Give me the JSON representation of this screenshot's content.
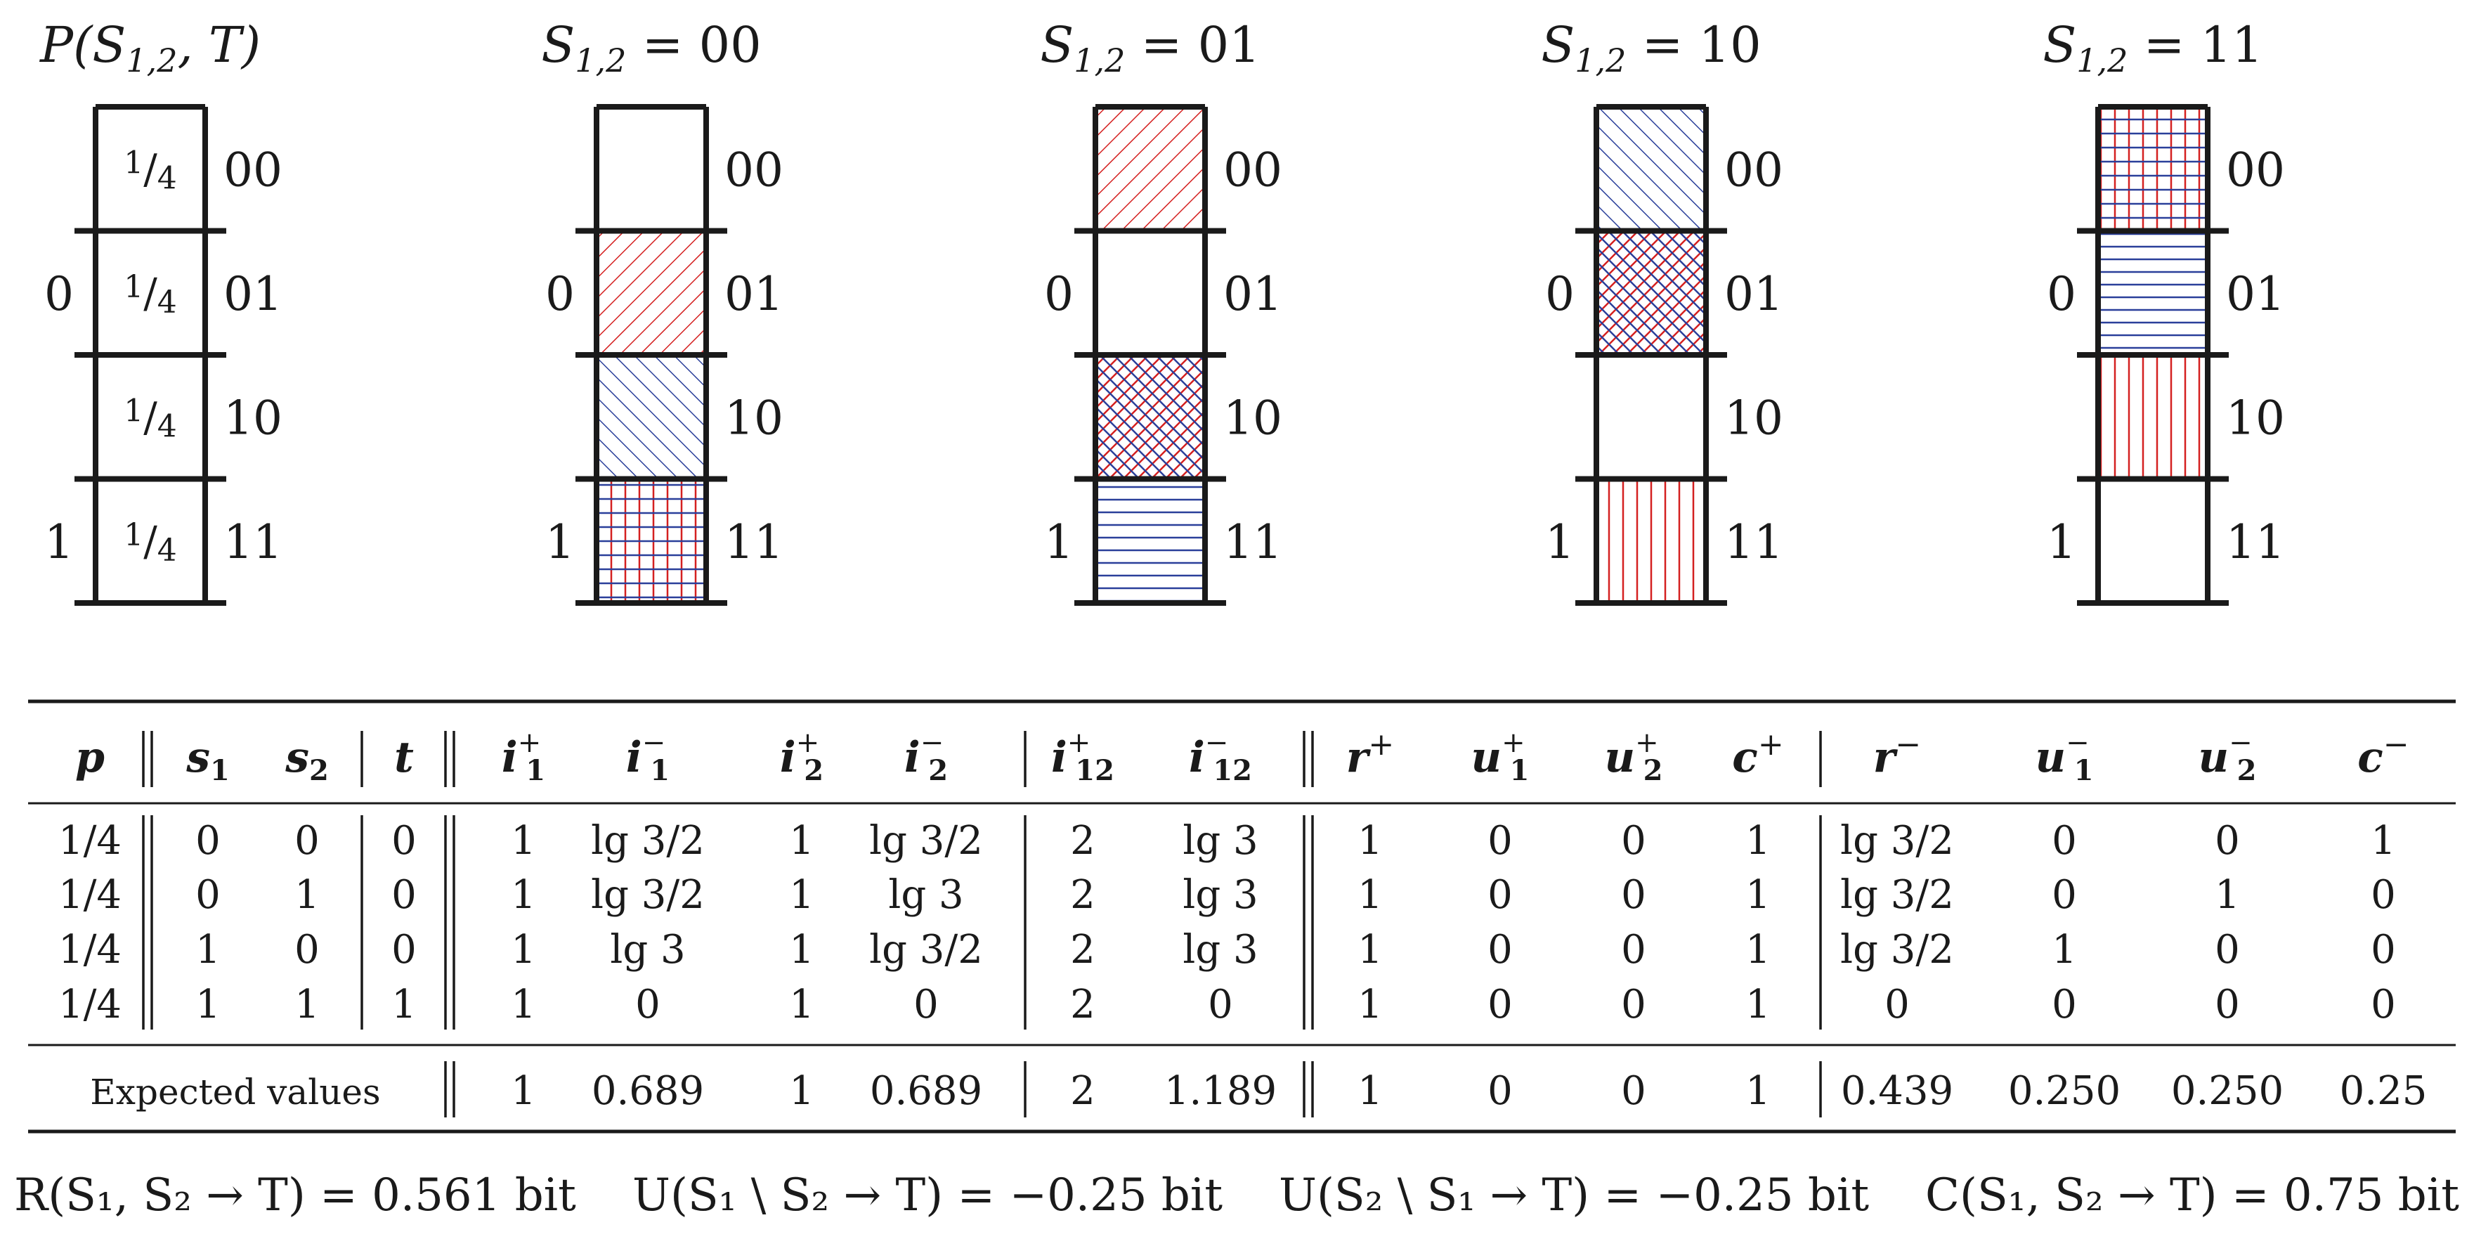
{
  "panels": [
    {
      "title_main": "P(S",
      "title_sub": "1,2",
      "title_rest": ", T)",
      "cells": [
        {
          "label": "1/4",
          "pattern": "none"
        },
        {
          "label": "1/4",
          "pattern": "none"
        },
        {
          "label": "1/4",
          "pattern": "none"
        },
        {
          "label": "1/4",
          "pattern": "none"
        }
      ]
    },
    {
      "title_main": "S",
      "title_sub": "1,2",
      "title_rest": " = 00",
      "cells": [
        {
          "label": "",
          "pattern": "none"
        },
        {
          "label": "",
          "pattern": "red-diag-up"
        },
        {
          "label": "",
          "pattern": "blue-diag-down"
        },
        {
          "label": "",
          "pattern": "grid"
        }
      ]
    },
    {
      "title_main": "S",
      "title_sub": "1,2",
      "title_rest": " = 01",
      "cells": [
        {
          "label": "",
          "pattern": "red-diag-up"
        },
        {
          "label": "",
          "pattern": "none"
        },
        {
          "label": "",
          "pattern": "crosshatch"
        },
        {
          "label": "",
          "pattern": "blue-horizontal"
        }
      ]
    },
    {
      "title_main": "S",
      "title_sub": "1,2",
      "title_rest": " = 10",
      "cells": [
        {
          "label": "",
          "pattern": "blue-diag-down"
        },
        {
          "label": "",
          "pattern": "crosshatch"
        },
        {
          "label": "",
          "pattern": "none"
        },
        {
          "label": "",
          "pattern": "red-vertical"
        }
      ]
    },
    {
      "title_main": "S",
      "title_sub": "1,2",
      "title_rest": " = 11",
      "cells": [
        {
          "label": "",
          "pattern": "grid"
        },
        {
          "label": "",
          "pattern": "blue-horizontal"
        },
        {
          "label": "",
          "pattern": "red-vertical"
        },
        {
          "label": "",
          "pattern": "none"
        }
      ]
    }
  ],
  "row_labels_right": [
    "00",
    "01",
    "10",
    "11"
  ],
  "t_labels": [
    "0",
    "1"
  ],
  "colors": {
    "red": "#d42020",
    "blue": "#2a3f9a",
    "ink": "#1a1a1a"
  },
  "table": {
    "headers": [
      {
        "base": "p",
        "sup": "",
        "sub": ""
      },
      {
        "base": "s",
        "sup": "",
        "sub": "1"
      },
      {
        "base": "s",
        "sup": "",
        "sub": "2"
      },
      {
        "base": "t",
        "sup": "",
        "sub": ""
      },
      {
        "base": "i",
        "sup": "+",
        "sub": "1"
      },
      {
        "base": "i",
        "sup": "−",
        "sub": "1"
      },
      {
        "base": "i",
        "sup": "+",
        "sub": "2"
      },
      {
        "base": "i",
        "sup": "−",
        "sub": "2"
      },
      {
        "base": "i",
        "sup": "+",
        "sub": "12"
      },
      {
        "base": "i",
        "sup": "−",
        "sub": "12"
      },
      {
        "base": "r",
        "sup": "+",
        "sub": ""
      },
      {
        "base": "u",
        "sup": "+",
        "sub": "1"
      },
      {
        "base": "u",
        "sup": "+",
        "sub": "2"
      },
      {
        "base": "c",
        "sup": "+",
        "sub": ""
      },
      {
        "base": "r",
        "sup": "−",
        "sub": ""
      },
      {
        "base": "u",
        "sup": "−",
        "sub": "1"
      },
      {
        "base": "u",
        "sup": "−",
        "sub": "2"
      },
      {
        "base": "c",
        "sup": "−",
        "sub": ""
      }
    ],
    "rows": [
      [
        "1/4",
        "0",
        "0",
        "0",
        "1",
        "lg 3/2",
        "1",
        "lg 3/2",
        "2",
        "lg 3",
        "1",
        "0",
        "0",
        "1",
        "lg 3/2",
        "0",
        "0",
        "1"
      ],
      [
        "1/4",
        "0",
        "1",
        "0",
        "1",
        "lg 3/2",
        "1",
        "lg 3",
        "2",
        "lg 3",
        "1",
        "0",
        "0",
        "1",
        "lg 3/2",
        "0",
        "1",
        "0"
      ],
      [
        "1/4",
        "1",
        "0",
        "0",
        "1",
        "lg 3",
        "1",
        "lg 3/2",
        "2",
        "lg 3",
        "1",
        "0",
        "0",
        "1",
        "lg 3/2",
        "1",
        "0",
        "0"
      ],
      [
        "1/4",
        "1",
        "1",
        "1",
        "1",
        "0",
        "1",
        "0",
        "2",
        "0",
        "1",
        "0",
        "0",
        "1",
        "0",
        "0",
        "0",
        "0"
      ]
    ],
    "expected_label": "Expected values",
    "expected": [
      "1",
      "0.689",
      "1",
      "0.689",
      "2",
      "1.189",
      "1",
      "0",
      "0",
      "1",
      "0.439",
      "0.250",
      "0.250",
      "0.25"
    ]
  },
  "summary": [
    "R(S₁, S₂ → T) = 0.561 bit",
    "U(S₁ \\ S₂ → T) = −0.25 bit",
    "U(S₂ \\ S₁ → T) = −0.25 bit",
    "C(S₁, S₂ → T) = 0.75 bit"
  ]
}
